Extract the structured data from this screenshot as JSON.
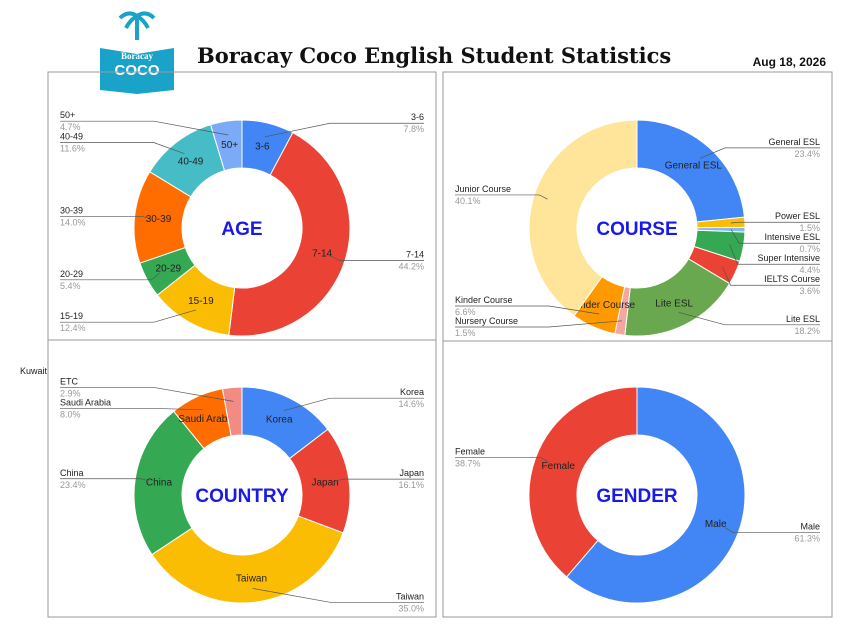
{
  "header": {
    "logo_top": "Boracay",
    "logo_main": "COCO",
    "title": "Boracay Coco English Student Statistics",
    "date": "Aug 18, 2026"
  },
  "stray_label": "Kuwait",
  "chart_data": [
    {
      "type": "donut",
      "center_label": "AGE",
      "categories": [
        "3-6",
        "7-14",
        "15-19",
        "20-29",
        "30-39",
        "40-49",
        "50+"
      ],
      "values": [
        7.8,
        44.2,
        12.4,
        5.4,
        14.0,
        11.6,
        4.7
      ],
      "value_labels": [
        "7.8%",
        "44.2%",
        "12.4%",
        "5.4%",
        "14.0%",
        "11.6%",
        "4.7%"
      ],
      "colors": [
        "#4285f4",
        "#ea4335",
        "#fbbc04",
        "#34a853",
        "#ff6d01",
        "#46bdc6",
        "#7baaf7"
      ]
    },
    {
      "type": "donut",
      "center_label": "COURSE",
      "categories": [
        "General ESL",
        "Power ESL",
        "Intensive ESL",
        "Super Intensive",
        "IELTS Course",
        "Lite ESL",
        "Nursery Course",
        "Kinder Course",
        "Junior Course"
      ],
      "values": [
        23.4,
        1.5,
        0.7,
        4.4,
        3.6,
        18.2,
        1.5,
        6.6,
        40.1
      ],
      "value_labels": [
        "23.4%",
        "1.5%",
        "0.7%",
        "4.4%",
        "3.6%",
        "18.2%",
        "1.5%",
        "6.6%",
        "40.1%"
      ],
      "colors": [
        "#4285f4",
        "#fbbc04",
        "#8ab4f8",
        "#34a853",
        "#ea4335",
        "#6aa84f",
        "#f4a6a0",
        "#ff9900",
        "#ffe599"
      ]
    },
    {
      "type": "donut",
      "center_label": "COUNTRY",
      "categories": [
        "Korea",
        "Japan",
        "Taiwan",
        "China",
        "Saudi Arabia",
        "ETC"
      ],
      "values": [
        14.6,
        16.1,
        35.0,
        23.4,
        8.0,
        2.9
      ],
      "value_labels": [
        "14.6%",
        "16.1%",
        "35.0%",
        "23.4%",
        "8.0%",
        "2.9%"
      ],
      "colors": [
        "#4285f4",
        "#ea4335",
        "#fbbc04",
        "#34a853",
        "#ff6d01",
        "#f28b82"
      ]
    },
    {
      "type": "donut",
      "center_label": "GENDER",
      "categories": [
        "Male",
        "Female"
      ],
      "values": [
        61.3,
        38.7
      ],
      "value_labels": [
        "61.3%",
        "38.7%"
      ],
      "colors": [
        "#4285f4",
        "#ea4335"
      ]
    }
  ]
}
